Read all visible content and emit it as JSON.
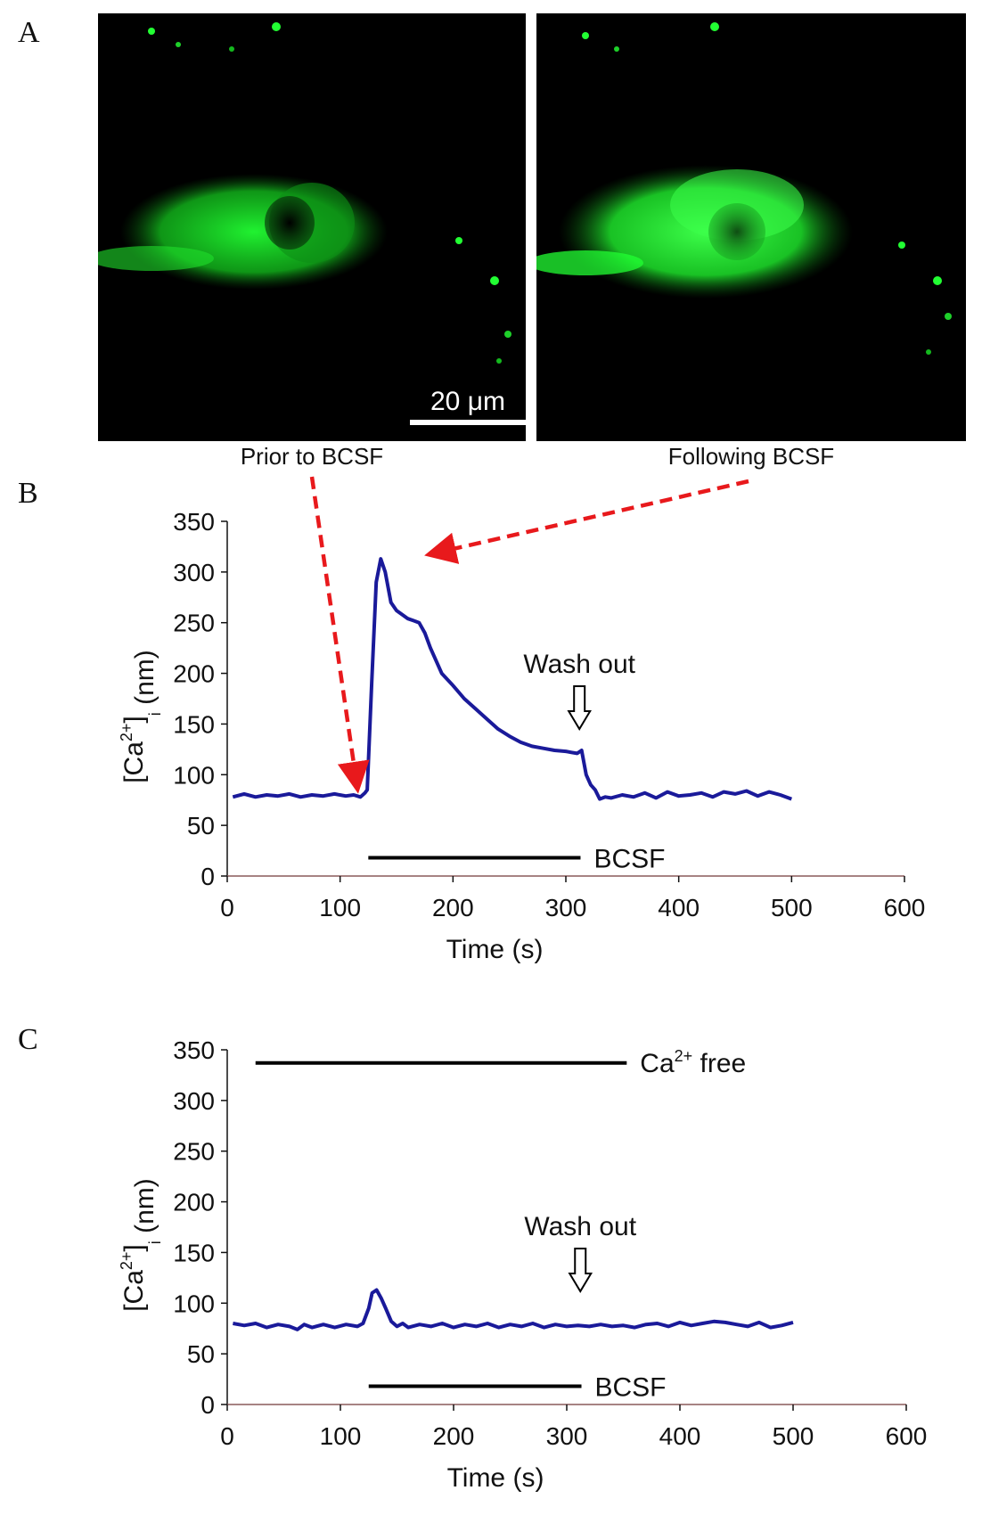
{
  "panels": {
    "a": "A",
    "b": "B",
    "c": "C"
  },
  "micrographs": {
    "left_caption": "Prior to BCSF",
    "right_caption": "Following BCSF",
    "scale_bar_label": "20 μm",
    "colors": {
      "fluorescence": "#22ff33",
      "background": "#000000"
    }
  },
  "colors": {
    "trace": "#1a1a9a",
    "annotation_arrow": "#e8191c",
    "axes": "#111111"
  },
  "chart_data": [
    {
      "type": "line",
      "panel": "B",
      "xlabel": "Time (s)",
      "ylabel_main": "[Ca",
      "ylabel_sup": "2+",
      "ylabel_close": "]",
      "ylabel_sub": "i",
      "ylabel_tail": " (nm)",
      "xlim": [
        0,
        600
      ],
      "ylim": [
        0,
        350
      ],
      "xticks": [
        "0",
        "100",
        "200",
        "300",
        "400",
        "500",
        "600"
      ],
      "yticks": [
        "0",
        "50",
        "100",
        "150",
        "200",
        "250",
        "300",
        "350"
      ],
      "series": [
        {
          "x": [
            5,
            15,
            25,
            35,
            45,
            55,
            65,
            75,
            85,
            95,
            105,
            112,
            118,
            122,
            124,
            128,
            132,
            136,
            140,
            145,
            150,
            155,
            160,
            165,
            170,
            175,
            180,
            190,
            200,
            210,
            220,
            230,
            240,
            250,
            260,
            270,
            280,
            290,
            300,
            305,
            310,
            314,
            318,
            322,
            326,
            330,
            335,
            340,
            350,
            360,
            370,
            380,
            390,
            400,
            410,
            420,
            430,
            440,
            450,
            460,
            470,
            480,
            490,
            500
          ],
          "y": [
            78,
            81,
            78,
            80,
            79,
            81,
            78,
            80,
            79,
            81,
            79,
            80,
            78,
            82,
            85,
            190,
            290,
            313,
            300,
            270,
            262,
            258,
            254,
            252,
            250,
            240,
            225,
            200,
            188,
            175,
            165,
            155,
            145,
            138,
            132,
            128,
            126,
            124,
            123,
            122,
            121,
            124,
            100,
            90,
            85,
            76,
            78,
            77,
            80,
            78,
            82,
            77,
            83,
            79,
            80,
            82,
            78,
            83,
            81,
            84,
            79,
            83,
            80,
            76
          ]
        }
      ],
      "annotations": {
        "washout_label": "Wash out",
        "washout_x": 312,
        "bcsf_label": "BCSF",
        "bcsf_bar": [
          125,
          313
        ]
      }
    },
    {
      "type": "line",
      "panel": "C",
      "xlabel": "Time (s)",
      "ylabel_main": "[Ca",
      "ylabel_sup": "2+",
      "ylabel_close": "]",
      "ylabel_sub": "i",
      "ylabel_tail": " (nm)",
      "xlim": [
        0,
        600
      ],
      "ylim": [
        0,
        350
      ],
      "xticks": [
        "0",
        "100",
        "200",
        "300",
        "400",
        "500",
        "600"
      ],
      "yticks": [
        "0",
        "50",
        "100",
        "150",
        "200",
        "250",
        "300",
        "350"
      ],
      "series": [
        {
          "x": [
            5,
            15,
            25,
            35,
            45,
            55,
            62,
            68,
            75,
            85,
            95,
            105,
            115,
            120,
            125,
            128,
            132,
            136,
            140,
            145,
            150,
            155,
            160,
            170,
            180,
            190,
            200,
            210,
            220,
            230,
            240,
            250,
            260,
            270,
            280,
            290,
            300,
            310,
            320,
            330,
            340,
            350,
            360,
            370,
            380,
            390,
            400,
            410,
            420,
            430,
            440,
            450,
            460,
            470,
            480,
            490,
            500
          ],
          "y": [
            80,
            78,
            80,
            76,
            79,
            77,
            74,
            79,
            76,
            79,
            76,
            79,
            77,
            80,
            95,
            110,
            113,
            105,
            95,
            82,
            77,
            80,
            76,
            79,
            77,
            80,
            76,
            79,
            77,
            80,
            76,
            79,
            77,
            80,
            76,
            79,
            77,
            78,
            77,
            79,
            77,
            78,
            76,
            79,
            80,
            77,
            81,
            78,
            80,
            82,
            81,
            79,
            77,
            81,
            76,
            78,
            81
          ]
        }
      ],
      "annotations": {
        "washout_label": "Wash out",
        "washout_x": 312,
        "bcsf_label": "BCSF",
        "bcsf_bar": [
          125,
          313
        ],
        "ca_free_label_main": "Ca",
        "ca_free_label_sup": "2+",
        "ca_free_label_tail": " free",
        "ca_free_bar": [
          25,
          353
        ],
        "ca_free_level": 337
      }
    }
  ]
}
